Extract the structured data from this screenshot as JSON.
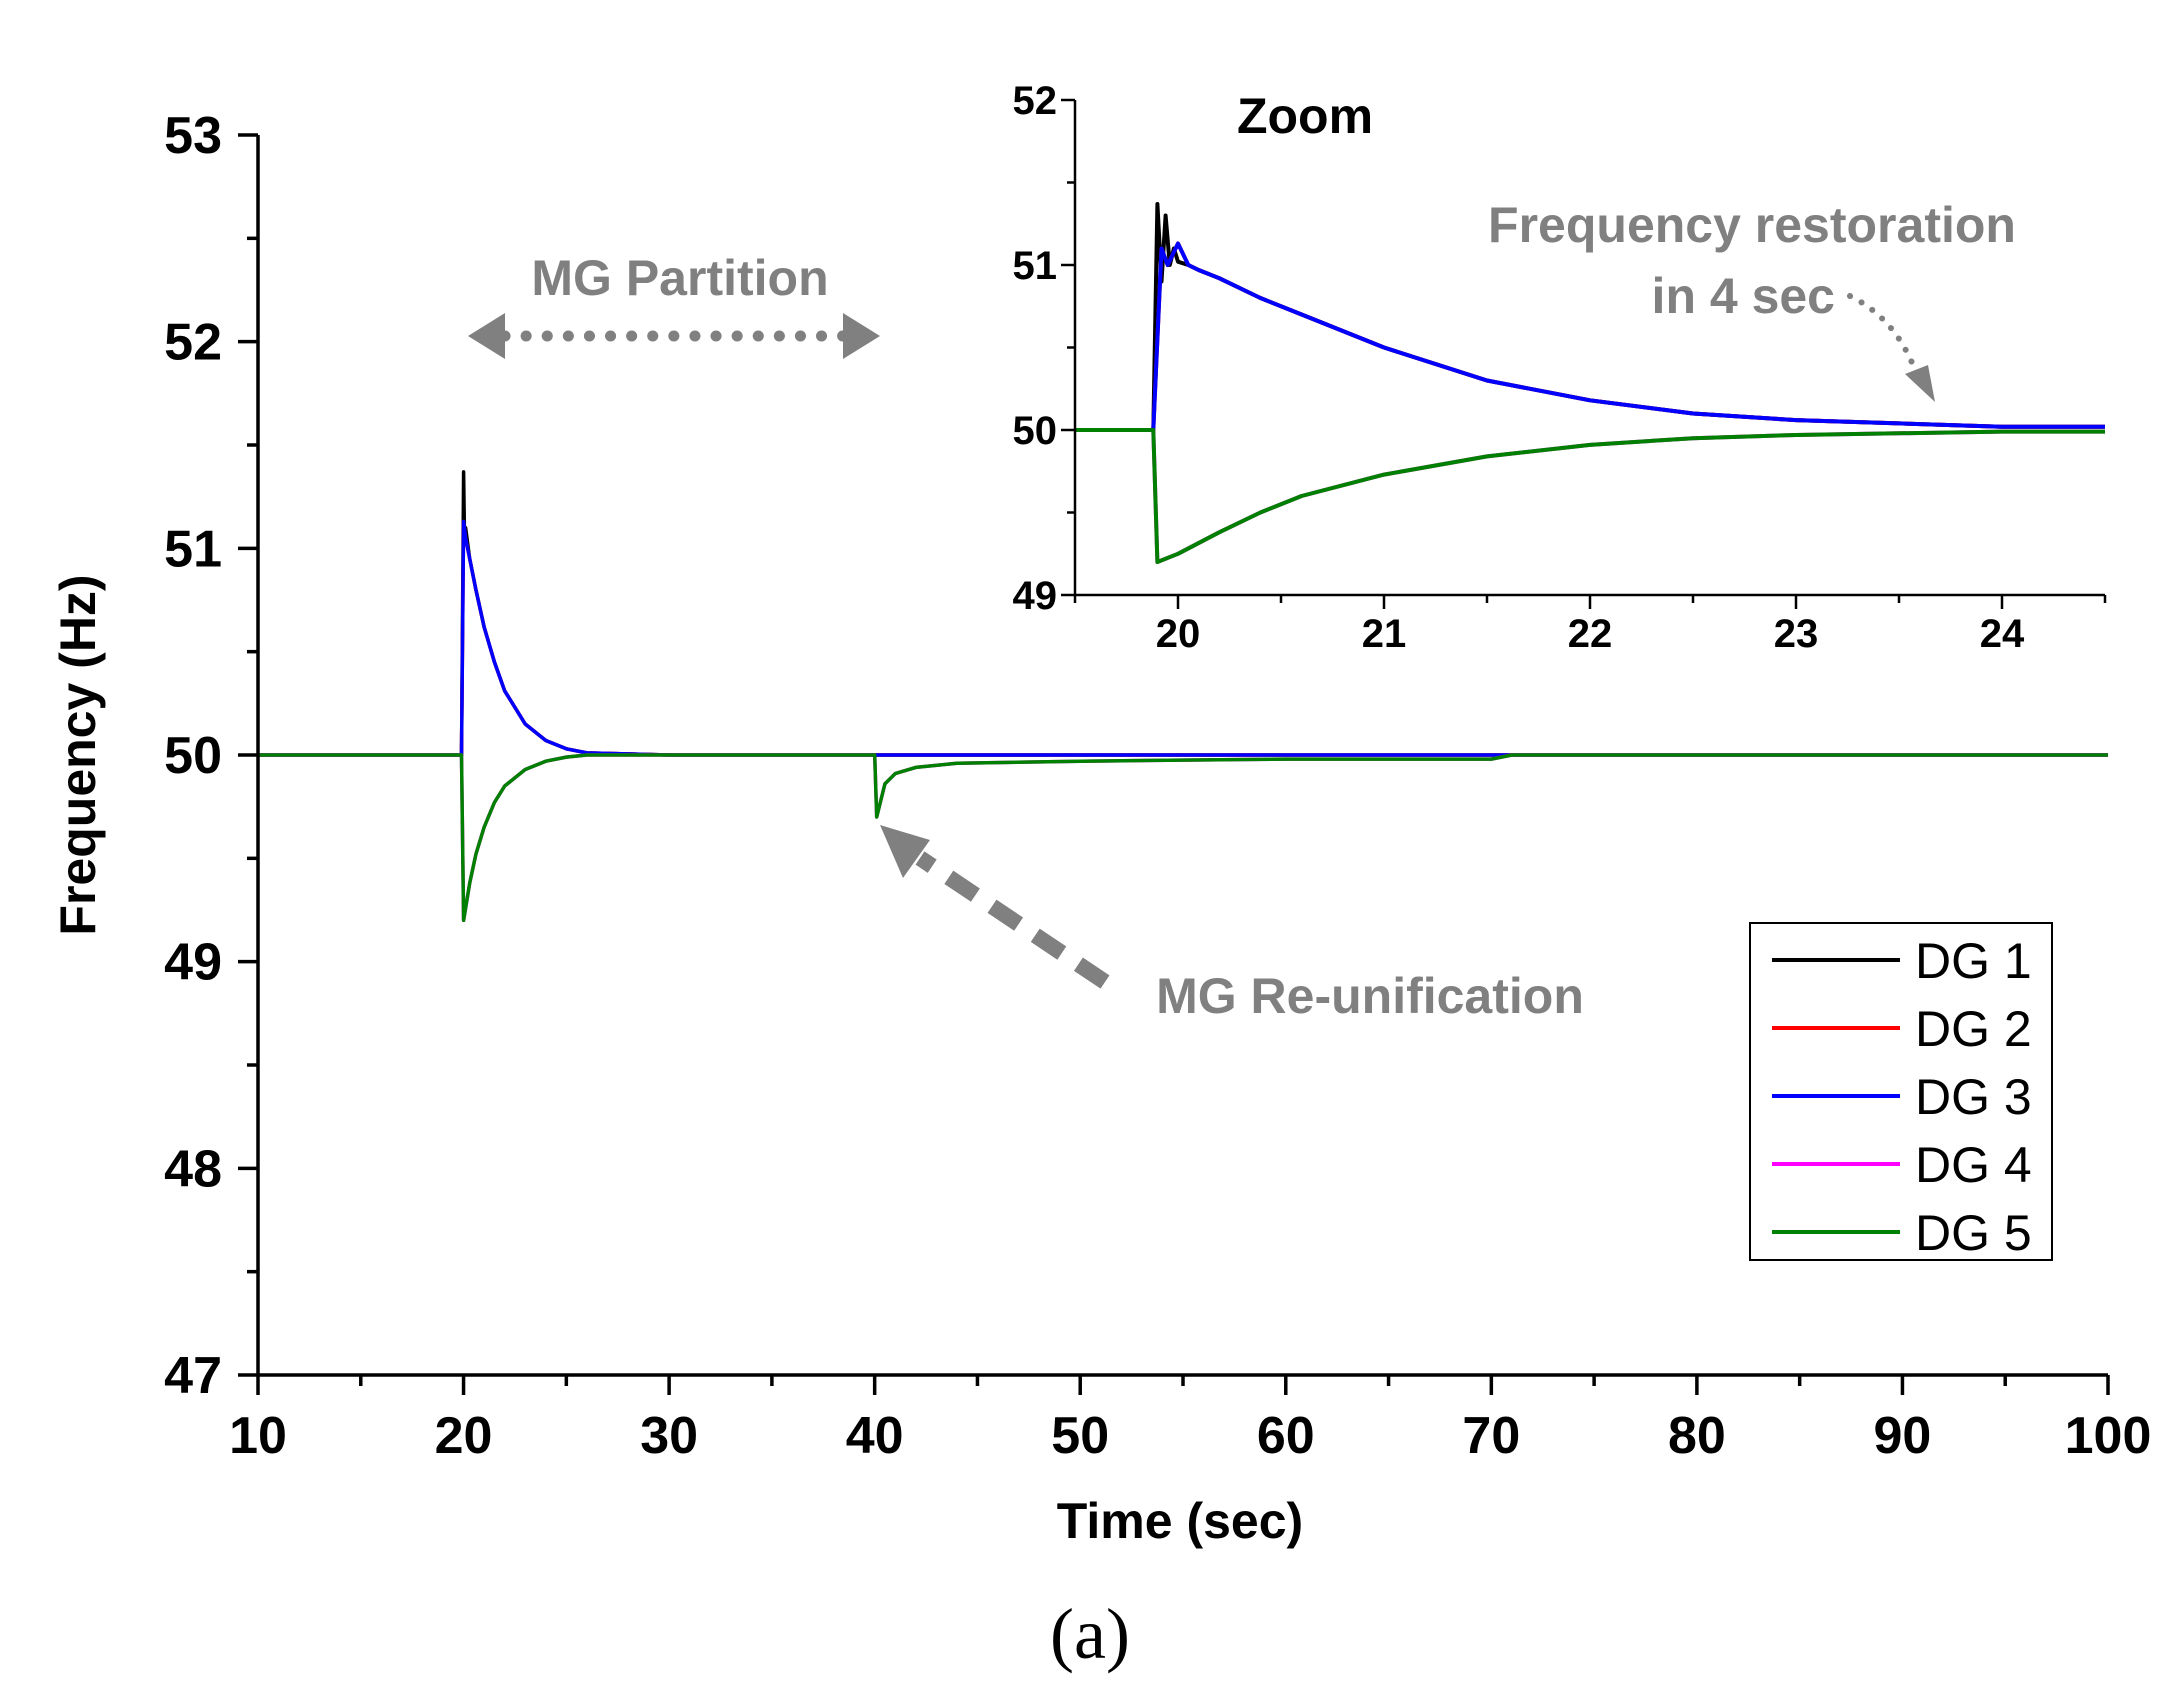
{
  "chart_data": [
    {
      "type": "line",
      "xlabel": "Time (sec)",
      "ylabel": "Frequency (Hz)",
      "xlim": [
        10,
        100
      ],
      "ylim": [
        47,
        53
      ],
      "xticks": [
        10,
        20,
        30,
        40,
        50,
        60,
        70,
        80,
        90,
        100
      ],
      "yticks": [
        47,
        48,
        49,
        50,
        51,
        52,
        53
      ],
      "series": [
        {
          "name": "DG 1",
          "color": "#000000",
          "x": [
            10,
            19.9,
            20.0,
            20.05,
            20.1,
            20.3,
            20.6,
            21,
            21.5,
            22,
            23,
            24,
            25,
            26,
            30,
            40,
            50,
            60,
            70,
            80,
            90,
            100
          ],
          "y": [
            50,
            50,
            51.37,
            51.02,
            51.1,
            50.95,
            50.8,
            50.62,
            50.45,
            50.31,
            50.15,
            50.07,
            50.03,
            50.01,
            50.0,
            50.0,
            50.0,
            50.0,
            50.0,
            50.0,
            50.0,
            50.0
          ]
        },
        {
          "name": "DG 2",
          "color": "#ff0000",
          "x": [
            10,
            19.9,
            20.0,
            20.1,
            20.3,
            20.6,
            21,
            21.5,
            22,
            23,
            24,
            25,
            26,
            30,
            40,
            50,
            60,
            70,
            80,
            90,
            100
          ],
          "y": [
            50,
            50,
            51.13,
            51.05,
            50.95,
            50.8,
            50.62,
            50.45,
            50.31,
            50.15,
            50.07,
            50.03,
            50.01,
            50.0,
            50.0,
            50.0,
            50.0,
            50.0,
            50.0,
            50.0,
            50.0
          ]
        },
        {
          "name": "DG 3",
          "color": "#0000ff",
          "x": [
            10,
            19.9,
            20.0,
            20.1,
            20.3,
            20.6,
            21,
            21.5,
            22,
            23,
            24,
            25,
            26,
            30,
            40,
            50,
            60,
            70,
            80,
            90,
            100
          ],
          "y": [
            50,
            50,
            51.13,
            51.05,
            50.95,
            50.8,
            50.62,
            50.45,
            50.31,
            50.15,
            50.07,
            50.03,
            50.01,
            50.0,
            50.0,
            50.0,
            50.0,
            50.0,
            50.0,
            50.0,
            50.0
          ]
        },
        {
          "name": "DG 4",
          "color": "#ff00ff",
          "x": [
            10,
            19.9,
            20.0,
            20.3,
            20.6,
            21,
            21.5,
            22,
            23,
            24,
            25,
            26,
            30,
            40,
            40.1,
            40.5,
            41,
            42,
            44,
            50,
            60,
            70,
            71,
            80,
            90,
            100
          ],
          "y": [
            50,
            50,
            49.2,
            49.38,
            49.52,
            49.65,
            49.77,
            49.85,
            49.93,
            49.97,
            49.99,
            50.0,
            50.0,
            50.0,
            49.7,
            49.86,
            49.91,
            49.94,
            49.96,
            49.97,
            49.98,
            49.98,
            50.0,
            50.0,
            50.0,
            50.0
          ]
        },
        {
          "name": "DG 5",
          "color": "#008000",
          "x": [
            10,
            19.9,
            20.0,
            20.3,
            20.6,
            21,
            21.5,
            22,
            23,
            24,
            25,
            26,
            30,
            40,
            40.1,
            40.5,
            41,
            42,
            44,
            50,
            60,
            70,
            71,
            80,
            90,
            100
          ],
          "y": [
            50,
            50,
            49.2,
            49.38,
            49.52,
            49.65,
            49.77,
            49.85,
            49.93,
            49.97,
            49.99,
            50.0,
            50.0,
            50.0,
            49.7,
            49.86,
            49.91,
            49.94,
            49.96,
            49.97,
            49.98,
            49.98,
            50.0,
            50.0,
            50.0,
            50.0
          ]
        }
      ],
      "legend": [
        "DG 1",
        "DG 2",
        "DG 3",
        "DG 4",
        "DG 5"
      ],
      "legend_position": "right",
      "annotations": [
        {
          "text": "MG Partition",
          "color": "#808080"
        },
        {
          "text": "MG Re-unification",
          "color": "#808080"
        }
      ]
    },
    {
      "type": "line",
      "title": "Zoom",
      "xlim": [
        19.5,
        24.5
      ],
      "ylim": [
        49,
        52
      ],
      "xticks": [
        20,
        21,
        22,
        23,
        24
      ],
      "yticks": [
        49,
        50,
        51,
        52
      ],
      "series": [
        {
          "name": "DG 1",
          "color": "#000000",
          "x": [
            19.5,
            19.88,
            19.9,
            19.92,
            19.94,
            19.96,
            19.98,
            20.0,
            20.05,
            20.1,
            20.2,
            20.4,
            20.6,
            21,
            21.5,
            22,
            22.5,
            23,
            23.5,
            24,
            24.5
          ],
          "y": [
            50,
            50,
            51.37,
            50.9,
            51.3,
            51.0,
            51.1,
            51.02,
            51.0,
            50.97,
            50.92,
            50.8,
            50.7,
            50.5,
            50.3,
            50.18,
            50.1,
            50.06,
            50.04,
            50.02,
            50.02
          ]
        },
        {
          "name": "DG 2",
          "color": "#ff0000",
          "x": [
            19.5,
            19.88,
            19.92,
            19.95,
            20.0,
            20.05,
            20.1,
            20.2,
            20.4,
            20.6,
            21,
            21.5,
            22,
            22.5,
            23,
            23.5,
            24,
            24.5
          ],
          "y": [
            50,
            50,
            51.1,
            51.0,
            51.13,
            51.0,
            50.97,
            50.92,
            50.8,
            50.7,
            50.5,
            50.3,
            50.18,
            50.1,
            50.06,
            50.04,
            50.02,
            50.02
          ]
        },
        {
          "name": "DG 3",
          "color": "#0000ff",
          "x": [
            19.5,
            19.88,
            19.92,
            19.95,
            20.0,
            20.05,
            20.1,
            20.2,
            20.4,
            20.6,
            21,
            21.5,
            22,
            22.5,
            23,
            23.5,
            24,
            24.5
          ],
          "y": [
            50,
            50,
            51.1,
            51.0,
            51.13,
            51.0,
            50.97,
            50.92,
            50.8,
            50.7,
            50.5,
            50.3,
            50.18,
            50.1,
            50.06,
            50.04,
            50.02,
            50.02
          ]
        },
        {
          "name": "DG 4",
          "color": "#ff00ff",
          "x": [
            19.5,
            19.88,
            19.9,
            20.0,
            20.2,
            20.4,
            20.6,
            21,
            21.5,
            22,
            22.5,
            23,
            23.5,
            24,
            24.5
          ],
          "y": [
            50,
            50,
            49.2,
            49.25,
            49.38,
            49.5,
            49.6,
            49.73,
            49.84,
            49.91,
            49.95,
            49.97,
            49.98,
            49.99,
            49.99
          ]
        },
        {
          "name": "DG 5",
          "color": "#008000",
          "x": [
            19.5,
            19.88,
            19.9,
            20.0,
            20.2,
            20.4,
            20.6,
            21,
            21.5,
            22,
            22.5,
            23,
            23.5,
            24,
            24.5
          ],
          "y": [
            50,
            50,
            49.2,
            49.25,
            49.38,
            49.5,
            49.6,
            49.73,
            49.84,
            49.91,
            49.95,
            49.97,
            49.98,
            49.99,
            49.99
          ]
        }
      ],
      "annotations": [
        {
          "text": "Frequency restoration",
          "color": "#808080"
        },
        {
          "text": "in 4 sec",
          "color": "#808080"
        }
      ]
    }
  ],
  "caption": "(a)",
  "colors": {
    "axis": "#000000",
    "annotation": "#808080"
  }
}
